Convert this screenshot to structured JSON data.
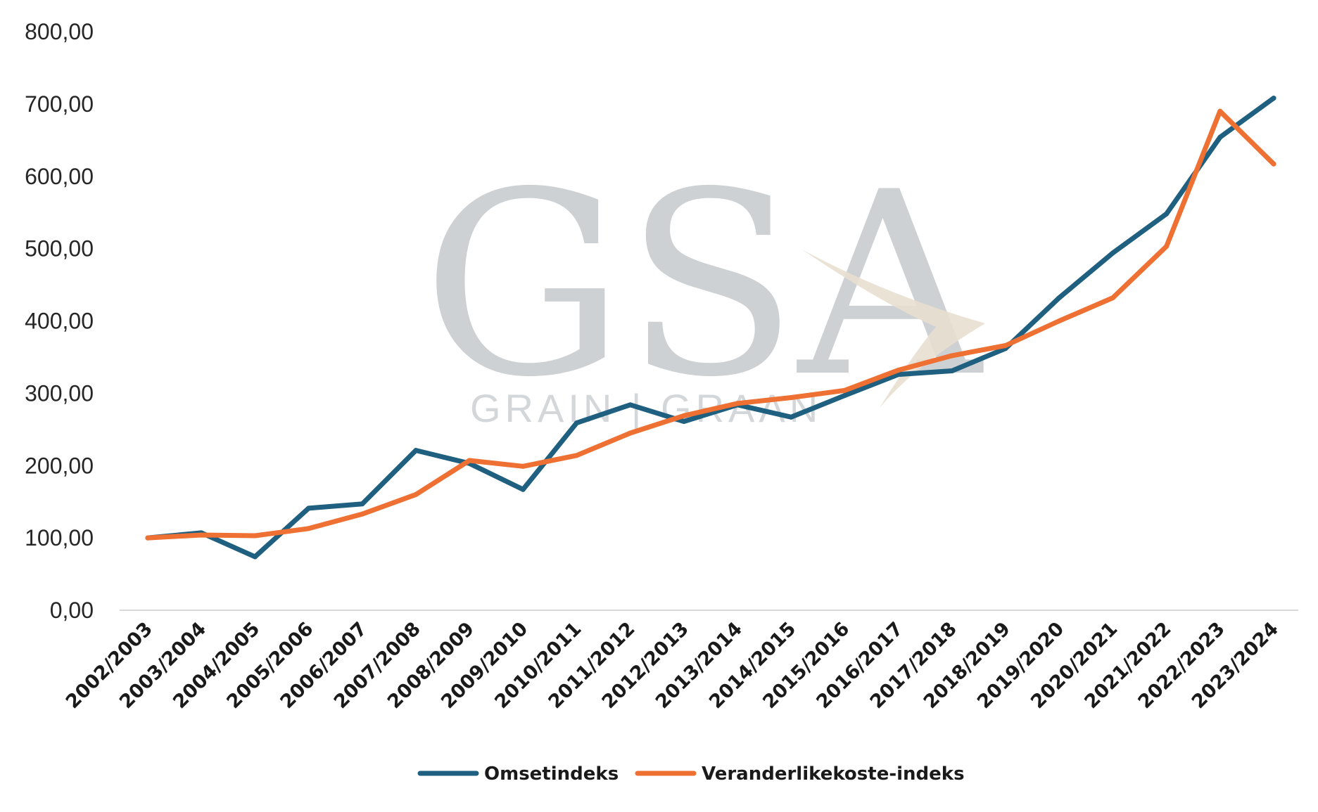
{
  "chart_data": {
    "type": "line",
    "title": "",
    "xlabel": "",
    "ylabel": "",
    "ylim": [
      0,
      800
    ],
    "yticks": [
      "0,00",
      "100,00",
      "200,00",
      "300,00",
      "400,00",
      "500,00",
      "600,00",
      "700,00",
      "800,00"
    ],
    "grid": false,
    "legend_position": "bottom",
    "categories": [
      "2002/2003",
      "2003/2004",
      "2004/2005",
      "2005/2006",
      "2006/2007",
      "2007/2008",
      "2008/2009",
      "2009/2010",
      "2010/2011",
      "2011/2012",
      "2012/2013",
      "2013/2014",
      "2014/2015",
      "2015/2016",
      "2016/2017",
      "2017/2018",
      "2018/2019",
      "2019/2020",
      "2020/2021",
      "2021/2022",
      "2022/2023",
      "2023/2024"
    ],
    "series": [
      {
        "name": "Omsetindeks",
        "color": "#1f5f7f",
        "values": [
          100,
          107,
          74,
          141,
          147,
          221,
          203,
          167,
          259,
          284,
          261,
          284,
          267,
          297,
          326,
          331,
          362,
          432,
          494,
          548,
          654,
          708
        ]
      },
      {
        "name": "Veranderlikekoste-indeks",
        "color": "#ee7033",
        "values": [
          100,
          104,
          103,
          113,
          133,
          160,
          207,
          199,
          214,
          245,
          269,
          286,
          294,
          304,
          332,
          352,
          366,
          400,
          432,
          503,
          690,
          617
        ]
      }
    ]
  },
  "watermark": {
    "logo_text": "GSA",
    "sub_text": "GRAIN | GRAAN"
  }
}
